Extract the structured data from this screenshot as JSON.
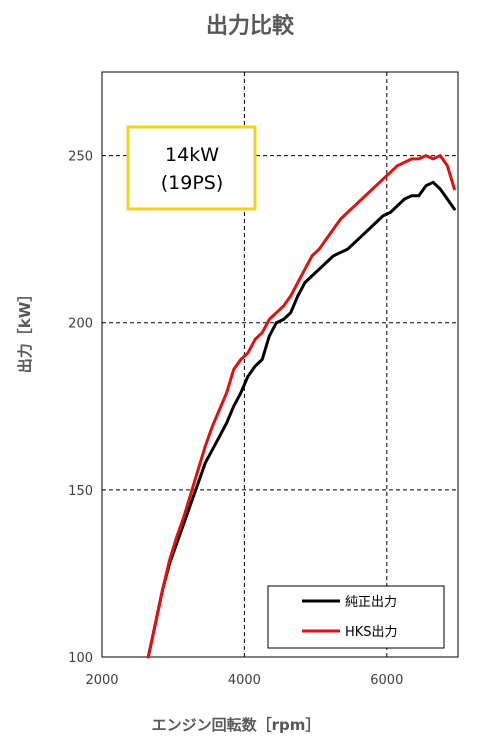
{
  "chart_data": {
    "type": "line",
    "title": "出力比較",
    "xlabel": "エンジン回転数［rpm］",
    "ylabel": "出力［kW］",
    "xlim": [
      2000,
      7000
    ],
    "ylim": [
      100,
      275
    ],
    "x_ticks": [
      2000,
      4000,
      6000
    ],
    "y_ticks": [
      100,
      150,
      200,
      250
    ],
    "grid": "dashed",
    "legend_position": "bottom-right",
    "annotation": {
      "line1": "14kW",
      "line2": "(19PS)",
      "border_color": "#f2d31b"
    },
    "series": [
      {
        "name": "純正出力",
        "color": "#000000",
        "x": [
          2650,
          2750,
          2850,
          2950,
          3050,
          3150,
          3250,
          3350,
          3450,
          3550,
          3650,
          3750,
          3850,
          3950,
          4050,
          4150,
          4250,
          4350,
          4450,
          4550,
          4650,
          4750,
          4850,
          4950,
          5050,
          5150,
          5250,
          5350,
          5450,
          5550,
          5650,
          5750,
          5850,
          5950,
          6050,
          6150,
          6250,
          6350,
          6450,
          6550,
          6650,
          6750,
          6850,
          6950
        ],
        "y": [
          100,
          110,
          120,
          128,
          134,
          140,
          146,
          152,
          158,
          162,
          166,
          170,
          175,
          179,
          184,
          187,
          189,
          196,
          200,
          201,
          203,
          208,
          212,
          214,
          216,
          218,
          220,
          221,
          222,
          224,
          226,
          228,
          230,
          232,
          233,
          235,
          237,
          238,
          238,
          241,
          242,
          240,
          237,
          234
        ]
      },
      {
        "name": "HKS出力",
        "color": "#e01010",
        "x": [
          2650,
          2750,
          2850,
          2950,
          3050,
          3150,
          3250,
          3350,
          3450,
          3550,
          3650,
          3750,
          3850,
          3950,
          4050,
          4150,
          4250,
          4350,
          4450,
          4550,
          4650,
          4750,
          4850,
          4950,
          5050,
          5150,
          5250,
          5350,
          5450,
          5550,
          5650,
          5750,
          5850,
          5950,
          6050,
          6150,
          6250,
          6350,
          6450,
          6550,
          6650,
          6750,
          6850,
          6950
        ],
        "y": [
          100,
          110,
          120,
          129,
          136,
          142,
          149,
          156,
          163,
          169,
          174,
          179,
          186,
          189,
          191,
          195,
          197,
          201,
          203,
          205,
          208,
          212,
          216,
          220,
          222,
          225,
          228,
          231,
          233,
          235,
          237,
          239,
          241,
          243,
          245,
          247,
          248,
          249,
          249,
          250,
          249,
          250,
          247,
          240
        ]
      }
    ]
  }
}
